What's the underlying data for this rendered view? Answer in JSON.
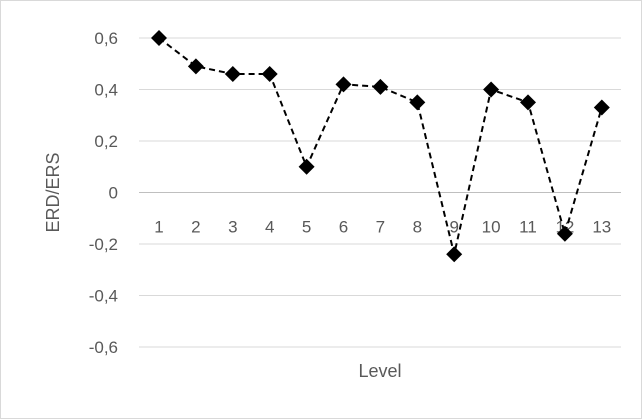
{
  "chart_data": {
    "type": "line",
    "xlabel": "Level",
    "ylabel": "ERD/ERS",
    "ylim": [
      -0.6,
      0.6
    ],
    "yticks": [
      0.6,
      0.4,
      0.2,
      0,
      -0.2,
      -0.4,
      -0.6
    ],
    "ytick_labels": [
      "0,6",
      "0,4",
      "0,2",
      "0",
      "-0,2",
      "-0,4",
      "-0,6"
    ],
    "categories": [
      "1",
      "2",
      "3",
      "4",
      "5",
      "6",
      "7",
      "8",
      "9",
      "10",
      "11",
      "12",
      "13"
    ],
    "series": [
      {
        "values": [
          0.6,
          0.49,
          0.46,
          0.46,
          0.1,
          0.42,
          0.41,
          0.35,
          -0.24,
          0.4,
          0.35,
          -0.16,
          0.33
        ],
        "color": "#000000",
        "marker": "diamond",
        "line_style": "dashed"
      }
    ],
    "grid": true,
    "legend": "none",
    "x_axis_crosses_at": 0
  }
}
